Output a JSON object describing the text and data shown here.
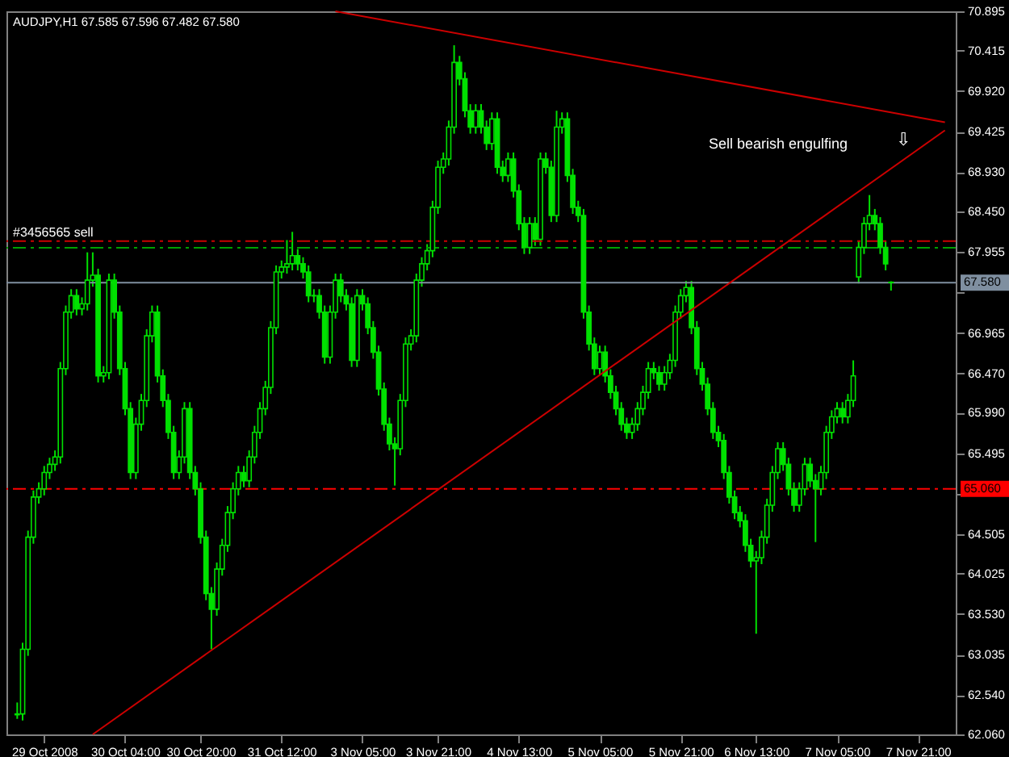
{
  "chart_data": {
    "type": "candlestick",
    "title": "AUDJPY,H1  67.585 67.596 67.482 67.580",
    "categories": [
      null,
      null,
      null,
      null,
      null,
      "29 Oct 2008",
      null,
      null,
      null,
      null,
      null,
      null,
      null,
      null,
      null,
      null,
      null,
      null,
      null,
      null,
      "30 Oct 04:00",
      null,
      null,
      null,
      null,
      null,
      null,
      null,
      null,
      null,
      null,
      null,
      null,
      null,
      "30 Oct 20:00",
      null,
      null,
      null,
      null,
      null,
      null,
      null,
      null,
      null,
      null,
      null,
      null,
      null,
      null,
      "31 Oct 12:00",
      null,
      null,
      null,
      null,
      null,
      null,
      null,
      null,
      null,
      null,
      null,
      null,
      null,
      null,
      "3 Nov 05:00",
      null,
      null,
      null,
      null,
      null,
      null,
      null,
      null,
      null,
      null,
      null,
      null,
      null,
      "3 Nov 21:00",
      null,
      null,
      null,
      null,
      null,
      null,
      null,
      null,
      null,
      null,
      null,
      null,
      null,
      null,
      "4 Nov 13:00",
      null,
      null,
      null,
      null,
      null,
      null,
      null,
      null,
      null,
      null,
      null,
      null,
      null,
      null,
      "5 Nov 05:00",
      null,
      null,
      null,
      null,
      null,
      null,
      null,
      null,
      null,
      null,
      null,
      null,
      null,
      null,
      "5 Nov 21:00",
      null,
      null,
      null,
      null,
      null,
      null,
      null,
      null,
      null,
      null,
      null,
      null,
      null,
      "6 Nov 13:00",
      null,
      null,
      null,
      null,
      null,
      null,
      null,
      null,
      null,
      null,
      null,
      null,
      null,
      null,
      "7 Nov 05:00",
      null,
      null,
      null,
      null,
      null,
      null,
      null,
      null,
      null,
      null,
      null,
      null,
      null,
      null,
      "7 Nov 21:00",
      null,
      null,
      null,
      null,
      null
    ],
    "ylim": [
      62.06,
      70.895
    ],
    "yticks": [
      {
        "value": 62.06,
        "label": "62.060"
      },
      {
        "value": 62.54,
        "label": "62.540"
      },
      {
        "value": 63.035,
        "label": "63.035"
      },
      {
        "value": 63.53,
        "label": "63.530"
      },
      {
        "value": 64.025,
        "label": "64.025"
      },
      {
        "value": 64.505,
        "label": "64.505"
      },
      {
        "value": 65.0,
        "label": null
      },
      {
        "value": 65.495,
        "label": "65.495"
      },
      {
        "value": 65.99,
        "label": "65.990"
      },
      {
        "value": 66.47,
        "label": "66.470"
      },
      {
        "value": 66.965,
        "label": "66.965"
      },
      {
        "value": 67.46,
        "label": null
      },
      {
        "value": 67.955,
        "label": "67.955"
      },
      {
        "value": 68.45,
        "label": "68.450"
      },
      {
        "value": 68.93,
        "label": "68.930"
      },
      {
        "value": 69.425,
        "label": "69.425"
      },
      {
        "value": 69.92,
        "label": "69.920"
      },
      {
        "value": 70.415,
        "label": "70.415"
      },
      {
        "value": 70.895,
        "label": "70.895"
      }
    ],
    "grid": false,
    "ref_lines": [
      {
        "axis": "y",
        "value": 67.58,
        "label": "67.580",
        "color": "#7f8fa0",
        "line_style": "solid"
      },
      {
        "axis": "y",
        "value": 65.06,
        "label": "65.060",
        "color": "#ff0000",
        "line_style": "dashed"
      },
      {
        "axis": "y",
        "value": 68.086,
        "label": "#3456565 sell",
        "color": "#cc0000",
        "line_style": "dashed"
      },
      {
        "axis": "y",
        "value": 68.007,
        "color": "#00a000",
        "line_style": "dashed"
      }
    ],
    "annotations": [
      "Sell bearish engulfing",
      "⇩"
    ],
    "series": [
      {
        "type": "candlestick",
        "color": "#00e000",
        "ohlc": [
          [
            62.3,
            62.45,
            62.25,
            62.31
          ],
          [
            62.31,
            63.18,
            62.23,
            63.1
          ],
          [
            63.1,
            64.55,
            63.02,
            64.47
          ],
          [
            64.47,
            65.04,
            64.39,
            64.96
          ],
          [
            64.96,
            65.14,
            64.88,
            65.06
          ],
          [
            65.06,
            65.34,
            64.98,
            65.26
          ],
          [
            65.26,
            65.44,
            65.18,
            65.36
          ],
          [
            65.36,
            65.53,
            65.28,
            65.45
          ],
          [
            65.45,
            66.61,
            65.37,
            66.53
          ],
          [
            66.53,
            67.3,
            66.45,
            67.22
          ],
          [
            67.22,
            67.5,
            67.14,
            67.42
          ],
          [
            67.42,
            67.5,
            67.18,
            67.26
          ],
          [
            67.26,
            67.4,
            67.18,
            67.32
          ],
          [
            67.32,
            67.95,
            67.24,
            67.61
          ],
          [
            67.61,
            67.95,
            67.53,
            67.67
          ],
          [
            67.67,
            67.75,
            66.36,
            66.44
          ],
          [
            66.44,
            66.56,
            66.36,
            66.48
          ],
          [
            66.48,
            67.69,
            66.4,
            67.61
          ],
          [
            67.61,
            67.69,
            67.14,
            67.22
          ],
          [
            67.22,
            67.3,
            66.45,
            66.53
          ],
          [
            66.53,
            66.61,
            65.96,
            66.04
          ],
          [
            66.04,
            66.12,
            65.18,
            65.26
          ],
          [
            65.26,
            65.93,
            65.18,
            65.85
          ],
          [
            65.85,
            66.22,
            65.77,
            66.14
          ],
          [
            66.14,
            67.01,
            66.06,
            66.93
          ],
          [
            66.93,
            67.3,
            66.85,
            67.22
          ],
          [
            67.22,
            67.3,
            66.36,
            66.44
          ],
          [
            66.44,
            66.52,
            66.06,
            66.14
          ],
          [
            66.14,
            66.22,
            65.67,
            65.75
          ],
          [
            65.75,
            65.83,
            65.18,
            65.26
          ],
          [
            65.26,
            65.53,
            65.18,
            65.45
          ],
          [
            65.45,
            66.12,
            65.37,
            66.04
          ],
          [
            66.04,
            66.12,
            65.18,
            65.26
          ],
          [
            65.26,
            65.34,
            64.98,
            65.06
          ],
          [
            65.06,
            65.14,
            64.39,
            64.47
          ],
          [
            64.47,
            64.55,
            63.7,
            63.78
          ],
          [
            63.78,
            63.86,
            63.1,
            63.59
          ],
          [
            63.59,
            64.16,
            63.51,
            64.08
          ],
          [
            64.08,
            64.45,
            64.0,
            64.37
          ],
          [
            64.37,
            64.85,
            64.29,
            64.77
          ],
          [
            64.77,
            65.14,
            64.69,
            65.06
          ],
          [
            65.06,
            65.34,
            64.98,
            65.26
          ],
          [
            65.26,
            65.34,
            65.08,
            65.16
          ],
          [
            65.16,
            65.53,
            65.08,
            65.45
          ],
          [
            65.45,
            65.83,
            65.37,
            65.75
          ],
          [
            65.75,
            66.12,
            65.67,
            66.04
          ],
          [
            66.04,
            66.38,
            65.96,
            66.3
          ],
          [
            66.3,
            67.11,
            66.22,
            67.03
          ],
          [
            67.03,
            67.79,
            66.95,
            67.71
          ],
          [
            67.71,
            67.85,
            67.63,
            67.77
          ],
          [
            67.77,
            68.1,
            67.69,
            67.81
          ],
          [
            67.81,
            68.2,
            67.73,
            67.91
          ],
          [
            67.91,
            67.99,
            67.73,
            67.81
          ],
          [
            67.81,
            67.89,
            67.63,
            67.71
          ],
          [
            67.71,
            67.79,
            67.34,
            67.42
          ],
          [
            67.42,
            67.5,
            67.34,
            67.42
          ],
          [
            67.42,
            67.5,
            67.14,
            67.22
          ],
          [
            67.22,
            67.3,
            66.59,
            66.67
          ],
          [
            66.67,
            67.3,
            66.59,
            67.22
          ],
          [
            67.22,
            67.69,
            67.14,
            67.61
          ],
          [
            67.61,
            67.69,
            67.34,
            67.42
          ],
          [
            67.42,
            67.5,
            67.24,
            67.32
          ],
          [
            67.32,
            67.4,
            66.55,
            66.63
          ],
          [
            66.63,
            67.5,
            66.55,
            67.42
          ],
          [
            67.42,
            67.5,
            67.24,
            67.32
          ],
          [
            67.32,
            67.4,
            66.95,
            67.03
          ],
          [
            67.03,
            67.11,
            66.65,
            66.73
          ],
          [
            66.73,
            66.81,
            66.2,
            66.28
          ],
          [
            66.28,
            66.36,
            65.77,
            65.85
          ],
          [
            65.85,
            65.93,
            65.53,
            65.61
          ],
          [
            65.61,
            65.69,
            65.1,
            65.55
          ],
          [
            65.55,
            66.22,
            65.47,
            66.14
          ],
          [
            66.14,
            66.91,
            66.06,
            66.83
          ],
          [
            66.83,
            67.01,
            66.75,
            66.93
          ],
          [
            66.93,
            67.69,
            66.85,
            67.61
          ],
          [
            67.61,
            67.89,
            67.53,
            67.81
          ],
          [
            67.81,
            68.05,
            67.73,
            67.97
          ],
          [
            67.97,
            68.58,
            67.89,
            68.5
          ],
          [
            68.5,
            69.07,
            68.42,
            68.99
          ],
          [
            68.99,
            69.17,
            68.91,
            69.09
          ],
          [
            69.09,
            69.56,
            69.01,
            69.48
          ],
          [
            69.48,
            70.48,
            69.4,
            70.27
          ],
          [
            70.27,
            70.35,
            69.99,
            70.07
          ],
          [
            70.07,
            70.15,
            69.6,
            69.68
          ],
          [
            69.68,
            69.76,
            69.4,
            69.48
          ],
          [
            69.48,
            69.76,
            69.4,
            69.68
          ],
          [
            69.68,
            69.76,
            69.4,
            69.48
          ],
          [
            69.48,
            69.56,
            69.2,
            69.28
          ],
          [
            69.28,
            69.66,
            69.2,
            69.58
          ],
          [
            69.58,
            69.66,
            68.91,
            68.99
          ],
          [
            68.99,
            69.07,
            68.81,
            68.89
          ],
          [
            68.89,
            69.17,
            68.81,
            69.09
          ],
          [
            69.09,
            69.17,
            68.62,
            68.7
          ],
          [
            68.7,
            68.78,
            68.22,
            68.3
          ],
          [
            68.3,
            68.38,
            67.93,
            68.01
          ],
          [
            68.01,
            68.38,
            67.93,
            68.3
          ],
          [
            68.3,
            68.38,
            68.03,
            68.11
          ],
          [
            68.11,
            69.17,
            68.03,
            69.09
          ],
          [
            69.09,
            69.17,
            68.91,
            68.99
          ],
          [
            68.99,
            69.07,
            68.32,
            68.4
          ],
          [
            68.4,
            69.68,
            68.32,
            69.48
          ],
          [
            69.48,
            69.66,
            69.4,
            69.58
          ],
          [
            69.58,
            69.66,
            68.81,
            68.89
          ],
          [
            68.89,
            68.97,
            68.42,
            68.5
          ],
          [
            68.5,
            68.58,
            68.32,
            68.4
          ],
          [
            68.4,
            68.48,
            67.14,
            67.22
          ],
          [
            67.22,
            67.3,
            66.75,
            66.83
          ],
          [
            66.83,
            66.91,
            66.45,
            66.53
          ],
          [
            66.53,
            66.81,
            66.45,
            66.73
          ],
          [
            66.73,
            66.81,
            66.36,
            66.44
          ],
          [
            66.44,
            66.52,
            66.16,
            66.24
          ],
          [
            66.24,
            66.32,
            65.96,
            66.04
          ],
          [
            66.04,
            66.12,
            65.77,
            65.85
          ],
          [
            65.85,
            65.93,
            65.67,
            65.75
          ],
          [
            65.75,
            65.93,
            65.67,
            65.85
          ],
          [
            65.85,
            66.12,
            65.77,
            66.04
          ],
          [
            66.04,
            66.32,
            65.96,
            66.24
          ],
          [
            66.24,
            66.61,
            66.16,
            66.53
          ],
          [
            66.53,
            66.61,
            66.4,
            66.48
          ],
          [
            66.48,
            66.56,
            66.26,
            66.34
          ],
          [
            66.34,
            66.56,
            66.26,
            66.48
          ],
          [
            66.48,
            66.71,
            66.4,
            66.63
          ],
          [
            66.63,
            67.3,
            66.55,
            67.22
          ],
          [
            67.22,
            67.5,
            67.14,
            67.42
          ],
          [
            67.42,
            67.6,
            67.34,
            67.52
          ],
          [
            67.52,
            67.6,
            66.95,
            67.03
          ],
          [
            67.03,
            67.11,
            66.45,
            66.53
          ],
          [
            66.53,
            66.61,
            66.26,
            66.34
          ],
          [
            66.34,
            66.42,
            65.96,
            66.04
          ],
          [
            66.04,
            66.12,
            65.67,
            65.75
          ],
          [
            65.75,
            65.83,
            65.57,
            65.65
          ],
          [
            65.65,
            65.73,
            65.18,
            65.26
          ],
          [
            65.26,
            65.34,
            64.88,
            64.96
          ],
          [
            64.96,
            65.04,
            64.69,
            64.77
          ],
          [
            64.77,
            64.85,
            64.59,
            64.67
          ],
          [
            64.67,
            64.75,
            64.29,
            64.37
          ],
          [
            64.37,
            64.45,
            64.1,
            64.18
          ],
          [
            64.18,
            64.3,
            63.29,
            64.22
          ],
          [
            64.22,
            64.55,
            64.14,
            64.47
          ],
          [
            64.47,
            64.94,
            64.39,
            64.86
          ],
          [
            64.86,
            65.34,
            64.78,
            65.26
          ],
          [
            65.26,
            65.63,
            65.18,
            65.55
          ],
          [
            65.55,
            65.63,
            65.28,
            65.36
          ],
          [
            65.36,
            65.44,
            64.98,
            65.06
          ],
          [
            65.06,
            65.14,
            64.78,
            64.86
          ],
          [
            64.86,
            65.14,
            64.78,
            65.06
          ],
          [
            65.06,
            65.44,
            64.98,
            65.36
          ],
          [
            65.36,
            65.44,
            65.08,
            65.16
          ],
          [
            65.16,
            65.24,
            64.41,
            65.06
          ],
          [
            65.06,
            65.34,
            64.98,
            65.26
          ],
          [
            65.26,
            65.83,
            65.18,
            65.75
          ],
          [
            65.75,
            66.02,
            65.67,
            65.94
          ],
          [
            65.94,
            66.12,
            65.86,
            66.04
          ],
          [
            66.04,
            66.12,
            65.86,
            65.94
          ],
          [
            65.94,
            66.22,
            65.86,
            66.14
          ],
          [
            66.14,
            66.63,
            66.06,
            66.44
          ],
          [
            67.65,
            68.09,
            67.57,
            68.01
          ],
          [
            68.01,
            68.38,
            67.93,
            68.3
          ],
          [
            68.3,
            68.65,
            68.22,
            68.4
          ],
          [
            68.4,
            68.48,
            68.22,
            68.3
          ],
          [
            68.3,
            68.38,
            67.93,
            68.01
          ],
          [
            68.01,
            68.09,
            67.73,
            67.81
          ],
          [
            67.585,
            67.596,
            67.482,
            67.58
          ],
          null,
          null,
          null,
          null,
          null,
          null,
          null,
          null,
          null,
          null
        ]
      },
      {
        "type": "line",
        "color": "#cc0000",
        "values": [
          null,
          null,
          null,
          null,
          null,
          null,
          null,
          null,
          null,
          null,
          null,
          null,
          null,
          null,
          null,
          null,
          null,
          null,
          null,
          null,
          null,
          null,
          null,
          null,
          null,
          null,
          null,
          null,
          null,
          null,
          null,
          null,
          null,
          null,
          null,
          null,
          null,
          null,
          null,
          null,
          null,
          null,
          null,
          null,
          null,
          null,
          null,
          null,
          null,
          null,
          null,
          null,
          null,
          null,
          null,
          null,
          null,
          null,
          null,
          70.895,
          null,
          null,
          null,
          null,
          null,
          null,
          null,
          null,
          null,
          null,
          null,
          null,
          null,
          null,
          null,
          null,
          null,
          null,
          null,
          null,
          null,
          null,
          null,
          null,
          null,
          null,
          null,
          null,
          null,
          null,
          null,
          null,
          null,
          null,
          null,
          null,
          null,
          null,
          null,
          null,
          null,
          null,
          null,
          null,
          null,
          null,
          null,
          null,
          null,
          null,
          null,
          null,
          null,
          null,
          null,
          null,
          null,
          null,
          null,
          null,
          null,
          null,
          null,
          null,
          null,
          null,
          null,
          null,
          null,
          null,
          null,
          null,
          null,
          null,
          null,
          null,
          null,
          null,
          null,
          null,
          null,
          null,
          null,
          null,
          null,
          null,
          null,
          null,
          null,
          null,
          null,
          null,
          null,
          null,
          null,
          null,
          null,
          null,
          null,
          null,
          null,
          null,
          null,
          null,
          null,
          null,
          null,
          null,
          null,
          null,
          null,
          null,
          69.54
        ]
      },
      {
        "type": "line",
        "color": "#cc0000",
        "values": [
          null,
          null,
          null,
          null,
          null,
          null,
          null,
          null,
          null,
          null,
          null,
          null,
          null,
          null,
          62.06,
          null,
          null,
          null,
          null,
          null,
          null,
          null,
          null,
          null,
          null,
          null,
          null,
          null,
          null,
          null,
          null,
          null,
          null,
          null,
          null,
          null,
          null,
          null,
          null,
          null,
          null,
          null,
          null,
          null,
          null,
          null,
          null,
          null,
          null,
          null,
          null,
          null,
          null,
          null,
          null,
          null,
          null,
          null,
          null,
          null,
          null,
          null,
          null,
          null,
          null,
          null,
          null,
          null,
          null,
          null,
          null,
          null,
          null,
          null,
          null,
          null,
          null,
          null,
          null,
          null,
          null,
          null,
          null,
          null,
          null,
          null,
          null,
          null,
          null,
          null,
          null,
          null,
          null,
          null,
          null,
          null,
          null,
          null,
          null,
          null,
          null,
          null,
          null,
          null,
          null,
          null,
          null,
          null,
          null,
          null,
          null,
          null,
          null,
          null,
          null,
          null,
          null,
          null,
          null,
          null,
          null,
          null,
          null,
          null,
          null,
          null,
          null,
          null,
          null,
          null,
          null,
          null,
          null,
          null,
          null,
          null,
          null,
          null,
          null,
          null,
          null,
          null,
          null,
          null,
          null,
          null,
          null,
          null,
          null,
          null,
          null,
          null,
          null,
          null,
          null,
          null,
          null,
          null,
          null,
          null,
          null,
          null,
          null,
          null,
          null,
          null,
          null,
          null,
          null,
          null,
          null,
          null,
          69.44
        ]
      }
    ]
  }
}
